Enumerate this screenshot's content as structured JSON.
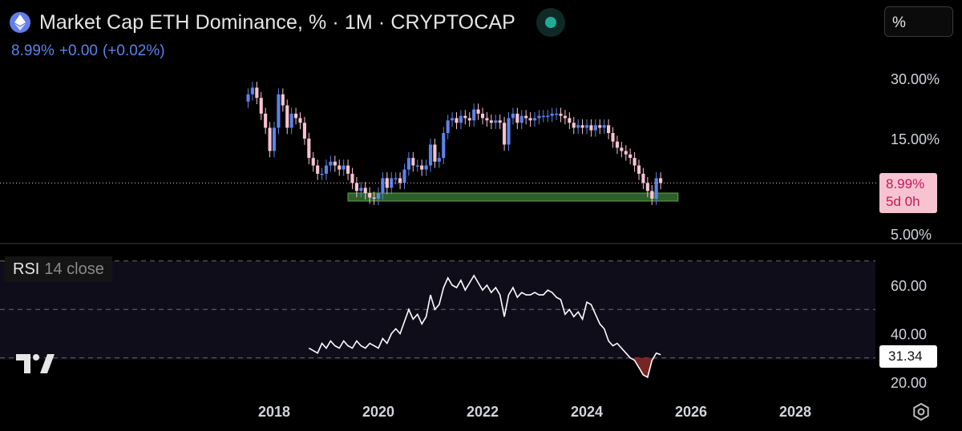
{
  "header": {
    "title": "Market Cap ETH Dominance, % · 1M · CRYPTOCAP",
    "last_value": "8.99%",
    "change_abs": "+0.00",
    "change_pct": "(+0.02%)",
    "unit_selector": "%"
  },
  "price_tag": {
    "value": "8.99%",
    "countdown": "5d 0h"
  },
  "rsi_legend": {
    "name": "RSI",
    "params": "14 close"
  },
  "rsi_tag": "31.34",
  "colors": {
    "up": "#5b83e8",
    "down": "#f7c3d1",
    "support_zone": "#2e5e2a",
    "rsi_line": "#ffffff"
  },
  "icons": {
    "logo": "ethereum-icon",
    "status": "market-open-dot",
    "brand": "tradingview-logo",
    "settings": "gear-icon"
  },
  "chart_data": [
    {
      "type": "candlestick",
      "interval": "1M",
      "y_scale": "log",
      "y_ticks": [
        "30.00%",
        "15.00%",
        "5.00%"
      ],
      "y_tick_values": [
        30,
        15,
        5
      ],
      "x_ticks": [
        "2018",
        "2020",
        "2022",
        "2024",
        "2026",
        "2028"
      ],
      "last_value": 8.99,
      "support_zone": {
        "from": "2019-06",
        "to": "2025-10",
        "low": 7.3,
        "high": 8.0
      },
      "close": [
        {
          "date": "2017-07",
          "value": 25
        },
        {
          "date": "2017-08",
          "value": 27
        },
        {
          "date": "2017-09",
          "value": 24
        },
        {
          "date": "2017-10",
          "value": 20
        },
        {
          "date": "2017-11",
          "value": 17
        },
        {
          "date": "2017-12",
          "value": 13
        },
        {
          "date": "2018-01",
          "value": 17
        },
        {
          "date": "2018-02",
          "value": 25
        },
        {
          "date": "2018-03",
          "value": 22
        },
        {
          "date": "2018-04",
          "value": 17
        },
        {
          "date": "2018-05",
          "value": 20
        },
        {
          "date": "2018-06",
          "value": 19
        },
        {
          "date": "2018-07",
          "value": 18
        },
        {
          "date": "2018-08",
          "value": 15
        },
        {
          "date": "2018-09",
          "value": 12
        },
        {
          "date": "2018-10",
          "value": 11
        },
        {
          "date": "2018-11",
          "value": 10
        },
        {
          "date": "2018-12",
          "value": 10
        },
        {
          "date": "2019-01",
          "value": 11
        },
        {
          "date": "2019-02",
          "value": 11.5
        },
        {
          "date": "2019-03",
          "value": 11
        },
        {
          "date": "2019-04",
          "value": 10.5
        },
        {
          "date": "2019-05",
          "value": 11
        },
        {
          "date": "2019-06",
          "value": 10
        },
        {
          "date": "2019-07",
          "value": 9
        },
        {
          "date": "2019-08",
          "value": 8.2
        },
        {
          "date": "2019-09",
          "value": 8.5
        },
        {
          "date": "2019-10",
          "value": 8
        },
        {
          "date": "2019-11",
          "value": 7.6
        },
        {
          "date": "2019-12",
          "value": 7.5
        },
        {
          "date": "2020-01",
          "value": 8
        },
        {
          "date": "2020-02",
          "value": 9.5
        },
        {
          "date": "2020-03",
          "value": 8.5
        },
        {
          "date": "2020-04",
          "value": 9.5
        },
        {
          "date": "2020-05",
          "value": 9.5
        },
        {
          "date": "2020-06",
          "value": 9
        },
        {
          "date": "2020-07",
          "value": 10.5
        },
        {
          "date": "2020-08",
          "value": 12
        },
        {
          "date": "2020-09",
          "value": 11
        },
        {
          "date": "2020-10",
          "value": 11
        },
        {
          "date": "2020-11",
          "value": 10.5
        },
        {
          "date": "2020-12",
          "value": 11
        },
        {
          "date": "2021-01",
          "value": 14
        },
        {
          "date": "2021-02",
          "value": 11.5
        },
        {
          "date": "2021-03",
          "value": 12
        },
        {
          "date": "2021-04",
          "value": 16
        },
        {
          "date": "2021-05",
          "value": 18.5
        },
        {
          "date": "2021-06",
          "value": 19
        },
        {
          "date": "2021-07",
          "value": 18
        },
        {
          "date": "2021-08",
          "value": 19.5
        },
        {
          "date": "2021-09",
          "value": 19
        },
        {
          "date": "2021-10",
          "value": 18.5
        },
        {
          "date": "2021-11",
          "value": 21
        },
        {
          "date": "2021-12",
          "value": 20
        },
        {
          "date": "2022-01",
          "value": 19
        },
        {
          "date": "2022-02",
          "value": 18.5
        },
        {
          "date": "2022-03",
          "value": 18
        },
        {
          "date": "2022-04",
          "value": 18.5
        },
        {
          "date": "2022-05",
          "value": 18
        },
        {
          "date": "2022-06",
          "value": 14
        },
        {
          "date": "2022-07",
          "value": 19
        },
        {
          "date": "2022-08",
          "value": 20
        },
        {
          "date": "2022-09",
          "value": 18
        },
        {
          "date": "2022-10",
          "value": 19.5
        },
        {
          "date": "2022-11",
          "value": 19
        },
        {
          "date": "2022-12",
          "value": 18.5
        },
        {
          "date": "2023-01",
          "value": 19
        },
        {
          "date": "2023-02",
          "value": 19.5
        },
        {
          "date": "2023-03",
          "value": 19.5
        },
        {
          "date": "2023-04",
          "value": 19.5
        },
        {
          "date": "2023-05",
          "value": 20
        },
        {
          "date": "2023-06",
          "value": 20
        },
        {
          "date": "2023-07",
          "value": 19.5
        },
        {
          "date": "2023-08",
          "value": 19
        },
        {
          "date": "2023-09",
          "value": 18
        },
        {
          "date": "2023-10",
          "value": 17
        },
        {
          "date": "2023-11",
          "value": 17.5
        },
        {
          "date": "2023-12",
          "value": 17
        },
        {
          "date": "2024-01",
          "value": 17.5
        },
        {
          "date": "2024-02",
          "value": 16.5
        },
        {
          "date": "2024-03",
          "value": 17.5
        },
        {
          "date": "2024-04",
          "value": 17
        },
        {
          "date": "2024-05",
          "value": 17.5
        },
        {
          "date": "2024-06",
          "value": 16
        },
        {
          "date": "2024-07",
          "value": 14.5
        },
        {
          "date": "2024-08",
          "value": 13.5
        },
        {
          "date": "2024-09",
          "value": 13
        },
        {
          "date": "2024-10",
          "value": 12.5
        },
        {
          "date": "2024-11",
          "value": 12
        },
        {
          "date": "2024-12",
          "value": 11
        },
        {
          "date": "2025-01",
          "value": 10
        },
        {
          "date": "2025-02",
          "value": 9
        },
        {
          "date": "2025-03",
          "value": 8.2
        },
        {
          "date": "2025-04",
          "value": 7.5
        },
        {
          "date": "2025-05",
          "value": 9.5
        },
        {
          "date": "2025-06",
          "value": 8.99
        }
      ]
    },
    {
      "type": "line",
      "y_ticks": [
        "60.00",
        "40.00",
        "20.00"
      ],
      "y_tick_values": [
        60,
        40,
        20
      ],
      "bands": [
        70,
        50,
        30
      ],
      "series": [
        {
          "name": "RSI",
          "points": [
            {
              "date": "2018-09",
              "value": 34
            },
            {
              "date": "2018-10",
              "value": 33
            },
            {
              "date": "2018-11",
              "value": 32
            },
            {
              "date": "2018-12",
              "value": 36
            },
            {
              "date": "2019-01",
              "value": 34
            },
            {
              "date": "2019-02",
              "value": 37
            },
            {
              "date": "2019-03",
              "value": 35
            },
            {
              "date": "2019-04",
              "value": 34
            },
            {
              "date": "2019-05",
              "value": 37
            },
            {
              "date": "2019-06",
              "value": 35
            },
            {
              "date": "2019-07",
              "value": 34
            },
            {
              "date": "2019-08",
              "value": 37
            },
            {
              "date": "2019-09",
              "value": 35
            },
            {
              "date": "2019-10",
              "value": 34
            },
            {
              "date": "2019-11",
              "value": 36
            },
            {
              "date": "2019-12",
              "value": 35
            },
            {
              "date": "2020-01",
              "value": 34
            },
            {
              "date": "2020-02",
              "value": 38
            },
            {
              "date": "2020-03",
              "value": 36
            },
            {
              "date": "2020-04",
              "value": 40
            },
            {
              "date": "2020-05",
              "value": 42
            },
            {
              "date": "2020-06",
              "value": 40
            },
            {
              "date": "2020-07",
              "value": 45
            },
            {
              "date": "2020-08",
              "value": 50
            },
            {
              "date": "2020-09",
              "value": 46
            },
            {
              "date": "2020-10",
              "value": 48
            },
            {
              "date": "2020-11",
              "value": 44
            },
            {
              "date": "2020-12",
              "value": 47
            },
            {
              "date": "2021-01",
              "value": 56
            },
            {
              "date": "2021-02",
              "value": 50
            },
            {
              "date": "2021-03",
              "value": 52
            },
            {
              "date": "2021-04",
              "value": 59
            },
            {
              "date": "2021-05",
              "value": 63
            },
            {
              "date": "2021-06",
              "value": 60
            },
            {
              "date": "2021-07",
              "value": 59
            },
            {
              "date": "2021-08",
              "value": 62
            },
            {
              "date": "2021-09",
              "value": 58
            },
            {
              "date": "2021-10",
              "value": 61
            },
            {
              "date": "2021-11",
              "value": 64
            },
            {
              "date": "2021-12",
              "value": 61
            },
            {
              "date": "2022-01",
              "value": 58
            },
            {
              "date": "2022-02",
              "value": 60
            },
            {
              "date": "2022-03",
              "value": 57
            },
            {
              "date": "2022-04",
              "value": 59
            },
            {
              "date": "2022-05",
              "value": 56
            },
            {
              "date": "2022-06",
              "value": 47
            },
            {
              "date": "2022-07",
              "value": 56
            },
            {
              "date": "2022-08",
              "value": 59
            },
            {
              "date": "2022-09",
              "value": 55
            },
            {
              "date": "2022-10",
              "value": 57
            },
            {
              "date": "2022-11",
              "value": 56
            },
            {
              "date": "2022-12",
              "value": 56
            },
            {
              "date": "2023-01",
              "value": 57
            },
            {
              "date": "2023-02",
              "value": 56
            },
            {
              "date": "2023-03",
              "value": 56
            },
            {
              "date": "2023-04",
              "value": 58
            },
            {
              "date": "2023-05",
              "value": 57
            },
            {
              "date": "2023-06",
              "value": 55
            },
            {
              "date": "2023-07",
              "value": 54
            },
            {
              "date": "2023-08",
              "value": 48
            },
            {
              "date": "2023-09",
              "value": 50
            },
            {
              "date": "2023-10",
              "value": 47
            },
            {
              "date": "2023-11",
              "value": 49
            },
            {
              "date": "2023-12",
              "value": 46
            },
            {
              "date": "2024-01",
              "value": 53
            },
            {
              "date": "2024-02",
              "value": 52
            },
            {
              "date": "2024-03",
              "value": 48
            },
            {
              "date": "2024-04",
              "value": 44
            },
            {
              "date": "2024-05",
              "value": 42
            },
            {
              "date": "2024-06",
              "value": 37
            },
            {
              "date": "2024-07",
              "value": 35
            },
            {
              "date": "2024-08",
              "value": 36
            },
            {
              "date": "2024-09",
              "value": 34
            },
            {
              "date": "2024-10",
              "value": 32
            },
            {
              "date": "2024-11",
              "value": 30
            },
            {
              "date": "2024-12",
              "value": 29
            },
            {
              "date": "2025-01",
              "value": 26
            },
            {
              "date": "2025-02",
              "value": 23
            },
            {
              "date": "2025-03",
              "value": 22
            },
            {
              "date": "2025-04",
              "value": 29
            },
            {
              "date": "2025-05",
              "value": 32
            },
            {
              "date": "2025-06",
              "value": 31.34
            }
          ]
        }
      ]
    }
  ]
}
